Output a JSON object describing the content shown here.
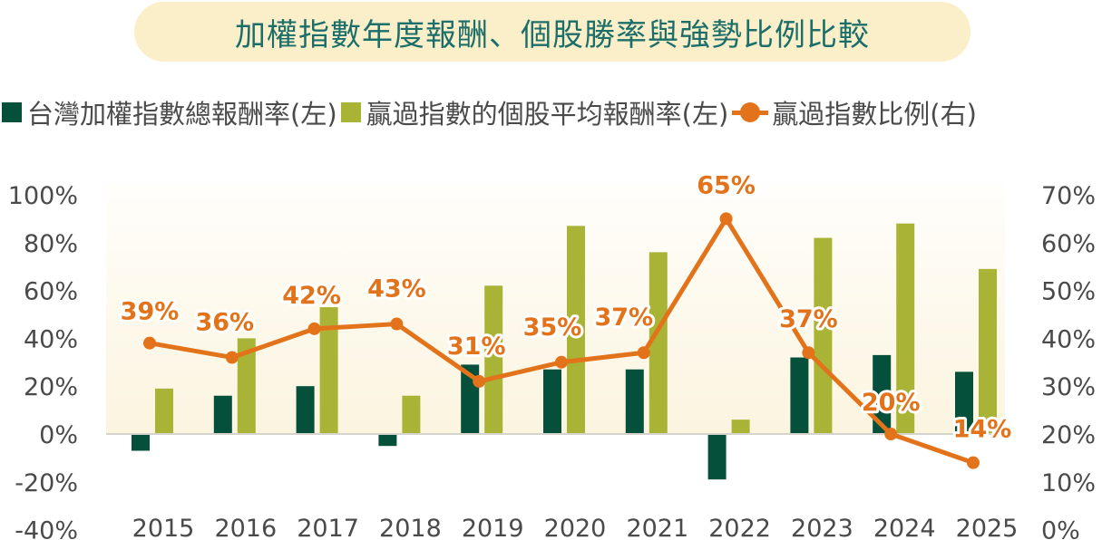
{
  "title": "加權指數年度報酬、個股勝率與強勢比例比較",
  "legend": [
    {
      "label": "台灣加權指數總報酬率(左)",
      "type": "square",
      "color": "#04503A"
    },
    {
      "label": "贏過指數的個股平均報酬率(左)",
      "type": "square",
      "color": "#A9B436"
    },
    {
      "label": "贏過指數比例(右)",
      "type": "line-marker",
      "color": "#E2731A"
    }
  ],
  "colors": {
    "index_return": "#04503A",
    "avg_winner_return": "#A9B436",
    "win_ratio": "#E2731A",
    "title_bg": "#FAEFC8",
    "title_text": "#1B6E6A",
    "axis_text": "#4A4A4A",
    "plot_bg_top": "#FFFEFB",
    "plot_bg_bottom": "#FBF4DF",
    "baseline": "#D6D3CC"
  },
  "chart_data": {
    "type": "bar+line",
    "title": "加權指數年度報酬、個股勝率與強勢比例比較",
    "categories": [
      "2015",
      "2016",
      "2017",
      "2018",
      "2019",
      "2020",
      "2021",
      "2022",
      "2023",
      "2024",
      "2025"
    ],
    "series": [
      {
        "name": "台灣加權指數總報酬率(左)",
        "type": "bar",
        "axis": "left",
        "values": [
          -7,
          16,
          20,
          -5,
          29,
          27,
          27,
          -19,
          32,
          33,
          26
        ]
      },
      {
        "name": "贏過指數的個股平均報酬率(左)",
        "type": "bar",
        "axis": "left",
        "values": [
          19,
          40,
          53,
          16,
          62,
          87,
          76,
          6,
          82,
          88,
          69
        ]
      },
      {
        "name": "贏過指數比例(右)",
        "type": "line",
        "axis": "right",
        "values": [
          39,
          36,
          42,
          43,
          31,
          35,
          37,
          65,
          37,
          20,
          14
        ],
        "data_labels": [
          "39%",
          "36%",
          "42%",
          "43%",
          "31%",
          "35%",
          "37%",
          "65%",
          "37%",
          "20%",
          "14%"
        ]
      }
    ],
    "left_axis": {
      "min": -40,
      "max": 100,
      "step": 20,
      "ticks": [
        "100%",
        "80%",
        "60%",
        "40%",
        "20%",
        "0%",
        "-20%",
        "-40%"
      ]
    },
    "right_axis": {
      "min": 0,
      "max": 70,
      "step": 10,
      "ticks": [
        "70%",
        "60%",
        "50%",
        "40%",
        "30%",
        "20%",
        "10%",
        "0%"
      ]
    },
    "xlabel": "",
    "ylabel_left": "",
    "ylabel_right": "",
    "grid": false,
    "legend_position": "top"
  }
}
